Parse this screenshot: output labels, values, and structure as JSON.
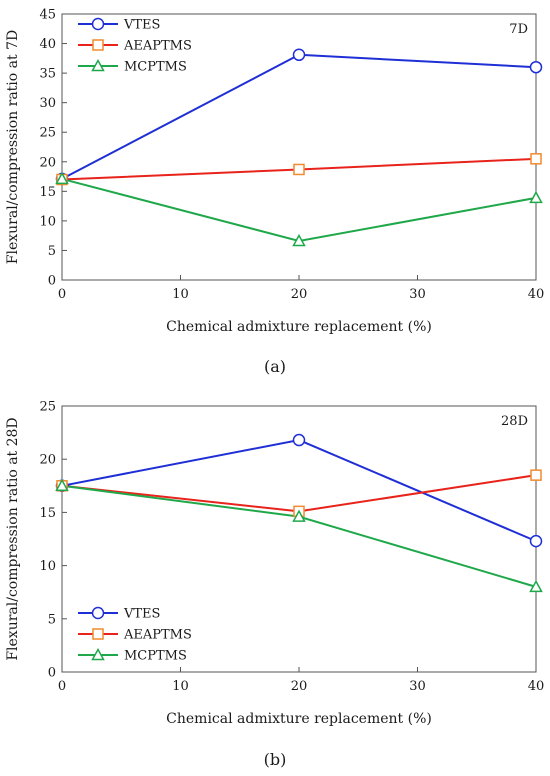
{
  "chart_data": [
    {
      "type": "line",
      "annotation": "7D",
      "caption": "(a)",
      "xlabel": "Chemical admixture replacement (%)",
      "ylabel": "Flexural/compression ratio at 7D",
      "x": [
        0,
        20,
        40
      ],
      "xlim": [
        0,
        40
      ],
      "xticks": [
        0,
        10,
        20,
        30,
        40
      ],
      "ylim": [
        0,
        45
      ],
      "yticks": [
        0,
        5,
        10,
        15,
        20,
        25,
        30,
        35,
        40,
        45
      ],
      "legend_position": "top-left",
      "grid": false,
      "series": [
        {
          "name": "VTES",
          "values": [
            17.1,
            38.1,
            36.0
          ],
          "color": "#1f2fd6",
          "marker": "circle"
        },
        {
          "name": "AEAPTMS",
          "values": [
            17.0,
            18.7,
            20.5
          ],
          "color": "#e8231b",
          "marker": "square",
          "marker_color": "#f28a2e"
        },
        {
          "name": "MCPTMS",
          "values": [
            17.1,
            6.6,
            13.9
          ],
          "color": "#1fa84a",
          "marker": "triangle"
        }
      ]
    },
    {
      "type": "line",
      "annotation": "28D",
      "caption": "(b)",
      "xlabel": "Chemical admixture replacement (%)",
      "ylabel": "Flexural/compression ratio at 28D",
      "x": [
        0,
        20,
        40
      ],
      "xlim": [
        0,
        40
      ],
      "xticks": [
        0,
        10,
        20,
        30,
        40
      ],
      "ylim": [
        0,
        25
      ],
      "yticks": [
        0,
        5,
        10,
        15,
        20,
        25
      ],
      "legend_position": "bottom-left",
      "grid": false,
      "series": [
        {
          "name": "VTES",
          "values": [
            17.5,
            21.8,
            12.3
          ],
          "color": "#1f2fd6",
          "marker": "circle"
        },
        {
          "name": "AEAPTMS",
          "values": [
            17.5,
            15.1,
            18.5
          ],
          "color": "#e8231b",
          "marker": "square",
          "marker_color": "#f28a2e"
        },
        {
          "name": "MCPTMS",
          "values": [
            17.5,
            14.6,
            8.0
          ],
          "color": "#1fa84a",
          "marker": "triangle"
        }
      ]
    }
  ]
}
